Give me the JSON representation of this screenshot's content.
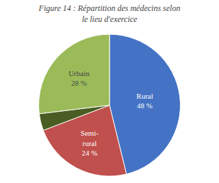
{
  "chart_data": {
    "type": "pie",
    "title": "Figure 14 : Répartition des médecins selon\nle lieu d'exercice",
    "categories": [
      "Rural",
      "Semi-\nrural",
      null,
      "Urbain"
    ],
    "values": [
      48,
      24,
      4,
      28
    ],
    "value_labels": [
      "48 %",
      "24 %",
      null,
      "28 %"
    ],
    "colors": [
      "#4472C4",
      "#C0504D",
      "#4A5D23",
      "#9BBB59"
    ],
    "data_labels": true
  }
}
